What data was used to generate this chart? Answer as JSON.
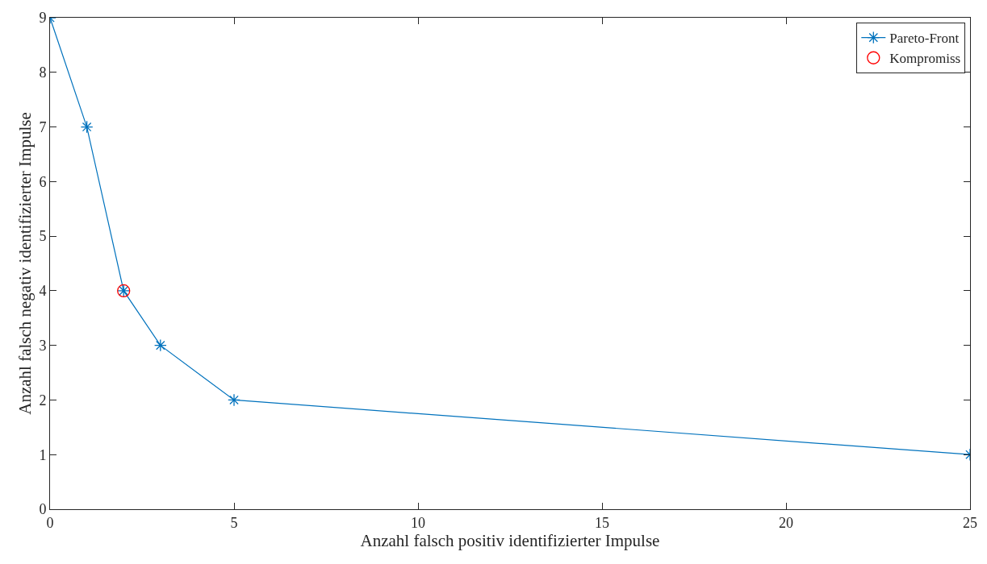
{
  "chart_data": {
    "type": "line",
    "xlabel": "Anzahl falsch positiv identifizierter Impulse",
    "ylabel": "Anzahl falsch negativ identifizierter Impulse",
    "x": [
      0,
      1,
      2,
      3,
      5,
      25
    ],
    "series": [
      {
        "name": "Pareto-Front",
        "color": "#0072bd",
        "marker": "cross",
        "values": [
          9,
          7,
          4,
          3,
          2,
          1
        ]
      },
      {
        "name": "Kompromiss",
        "type": "scatter",
        "color": "#ff0000",
        "marker": "circle",
        "x": [
          2
        ],
        "values": [
          4
        ]
      }
    ],
    "xlim": [
      0,
      25
    ],
    "xticks": [
      0,
      5,
      10,
      15,
      20,
      25
    ],
    "ylim": [
      0,
      9
    ],
    "yticks": [
      0,
      1,
      2,
      3,
      4,
      5,
      6,
      7,
      8,
      9
    ],
    "grid": false,
    "legend": "top right"
  }
}
